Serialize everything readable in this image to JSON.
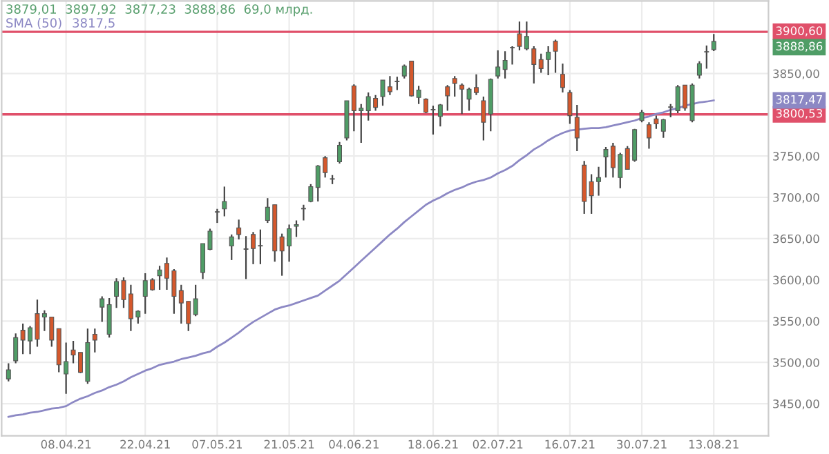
{
  "chart_data": {
    "type": "candlestick",
    "subtitle": "3879,01  3897,92  3877,23  3888,86  69,0 млрд.",
    "categories": [
      null,
      null,
      null,
      null,
      null,
      null,
      null,
      null,
      "08.04.21",
      null,
      null,
      null,
      null,
      null,
      null,
      null,
      null,
      null,
      null,
      "22.04.21",
      null,
      null,
      null,
      null,
      null,
      null,
      null,
      null,
      null,
      "07.05.21",
      null,
      null,
      null,
      null,
      null,
      null,
      null,
      null,
      null,
      "21.05.21",
      null,
      null,
      null,
      null,
      null,
      null,
      null,
      null,
      "04.06.21",
      null,
      null,
      null,
      null,
      null,
      null,
      null,
      null,
      null,
      null,
      "18.06.21",
      null,
      null,
      null,
      null,
      null,
      null,
      null,
      null,
      "02.07.21",
      null,
      null,
      null,
      null,
      null,
      null,
      null,
      null,
      null,
      "16.07.21",
      null,
      null,
      null,
      null,
      null,
      null,
      null,
      null,
      null,
      "30.07.21",
      null,
      null,
      null,
      null,
      null,
      null,
      null,
      null,
      null,
      "13.08.21"
    ],
    "ohlc": [
      [
        3480,
        3499,
        3477,
        3491
      ],
      [
        3502,
        3535,
        3499,
        3530
      ],
      [
        3539,
        3547,
        3510,
        3527
      ],
      [
        3526,
        3544,
        3510,
        3542
      ],
      [
        3559,
        3576,
        3519,
        3528
      ],
      [
        3555,
        3563,
        3538,
        3559
      ],
      [
        3555,
        3555,
        3519,
        3527
      ],
      [
        3541,
        3541,
        3488,
        3497
      ],
      [
        3486,
        3524,
        3462,
        3501
      ],
      [
        3515,
        3526,
        3499,
        3509
      ],
      [
        3512,
        3512,
        3487,
        3488
      ],
      [
        3477,
        3541,
        3474,
        3524
      ],
      [
        3534,
        3541,
        3512,
        3527
      ],
      [
        3567,
        3580,
        3549,
        3577
      ],
      [
        3534,
        3578,
        3530,
        3570
      ],
      [
        3580,
        3602,
        3566,
        3598
      ],
      [
        3599,
        3603,
        3566,
        3576
      ],
      [
        3583,
        3594,
        3538,
        3553
      ],
      [
        3555,
        3563,
        3547,
        3562
      ],
      [
        3580,
        3608,
        3559,
        3599
      ],
      [
        3600,
        3602,
        3587,
        3588
      ],
      [
        3605,
        3617,
        3588,
        3612
      ],
      [
        3620,
        3627,
        3588,
        3602
      ],
      [
        3611,
        3613,
        3559,
        3580
      ],
      [
        3587,
        3594,
        3547,
        3572
      ],
      [
        3574,
        3574,
        3538,
        3547
      ],
      [
        3558,
        3594,
        3556,
        3577
      ],
      [
        3609,
        3644,
        3601,
        3644
      ],
      [
        3637,
        3662,
        3636,
        3659
      ],
      [
        3682,
        3686,
        3669,
        3682
      ],
      [
        3686,
        3713,
        3677,
        3695
      ],
      [
        3641,
        3655,
        3624,
        3652
      ],
      [
        3663,
        3673,
        3649,
        3655
      ],
      [
        3637,
        3653,
        3601,
        3637
      ],
      [
        3655,
        3658,
        3619,
        3638
      ],
      [
        3641,
        3661,
        3619,
        3641
      ],
      [
        3672,
        3699,
        3669,
        3688
      ],
      [
        3691,
        3691,
        3622,
        3635
      ],
      [
        3652,
        3656,
        3605,
        3635
      ],
      [
        3641,
        3667,
        3622,
        3662
      ],
      [
        3665,
        3672,
        3652,
        3667
      ],
      [
        3686,
        3691,
        3672,
        3686
      ],
      [
        3695,
        3716,
        3694,
        3713
      ],
      [
        3712,
        3739,
        3695,
        3738
      ],
      [
        3748,
        3750,
        3724,
        3730
      ],
      [
        3722,
        3727,
        3716,
        3722
      ],
      [
        3743,
        3767,
        3741,
        3763
      ],
      [
        3772,
        3817,
        3769,
        3817
      ],
      [
        3835,
        3837,
        3780,
        3805
      ],
      [
        3805,
        3813,
        3766,
        3808
      ],
      [
        3805,
        3827,
        3793,
        3822
      ],
      [
        3820,
        3824,
        3805,
        3809
      ],
      [
        3822,
        3842,
        3811,
        3842
      ],
      [
        3834,
        3847,
        3824,
        3828
      ],
      [
        3840,
        3846,
        3830,
        3840
      ],
      [
        3847,
        3861,
        3844,
        3859
      ],
      [
        3865,
        3865,
        3822,
        3823
      ],
      [
        3821,
        3835,
        3813,
        3830
      ],
      [
        3819,
        3820,
        3802,
        3803
      ],
      [
        3806,
        3811,
        3776,
        3806
      ],
      [
        3798,
        3813,
        3786,
        3812
      ],
      [
        3834,
        3836,
        3805,
        3823
      ],
      [
        3844,
        3847,
        3822,
        3838
      ],
      [
        3836,
        3838,
        3801,
        3831
      ],
      [
        3819,
        3833,
        3805,
        3831
      ],
      [
        3833,
        3849,
        3824,
        3827
      ],
      [
        3817,
        3822,
        3769,
        3791
      ],
      [
        3801,
        3844,
        3780,
        3843
      ],
      [
        3847,
        3878,
        3844,
        3858
      ],
      [
        3855,
        3877,
        3844,
        3866
      ],
      [
        3881,
        3883,
        3861,
        3881
      ],
      [
        3898,
        3913,
        3878,
        3883
      ],
      [
        3880,
        3913,
        3878,
        3895
      ],
      [
        3880,
        3883,
        3838,
        3861
      ],
      [
        3867,
        3874,
        3851,
        3856
      ],
      [
        3867,
        3883,
        3848,
        3876
      ],
      [
        3889,
        3891,
        3851,
        3877
      ],
      [
        3849,
        3862,
        3827,
        3833
      ],
      [
        3827,
        3830,
        3789,
        3799
      ],
      [
        3797,
        3812,
        3756,
        3772
      ],
      [
        3739,
        3744,
        3680,
        3695
      ],
      [
        3719,
        3728,
        3680,
        3702
      ],
      [
        3719,
        3737,
        3702,
        3724
      ],
      [
        3749,
        3761,
        3724,
        3758
      ],
      [
        3762,
        3766,
        3724,
        3736
      ],
      [
        3724,
        3754,
        3711,
        3752
      ],
      [
        3759,
        3762,
        3734,
        3734
      ],
      [
        3745,
        3783,
        3743,
        3782
      ],
      [
        3793,
        3806,
        3791,
        3803
      ],
      [
        3788,
        3791,
        3759,
        3772
      ],
      [
        3795,
        3799,
        3783,
        3789
      ],
      [
        3780,
        3795,
        3772,
        3794
      ],
      [
        3809,
        3813,
        3797,
        3809
      ],
      [
        3805,
        3836,
        3802,
        3834
      ],
      [
        3836,
        3836,
        3805,
        3808
      ],
      [
        3793,
        3838,
        3791,
        3836
      ],
      [
        3848,
        3865,
        3844,
        3862
      ],
      [
        3876,
        3884,
        3856,
        3876
      ],
      [
        3879.01,
        3897.92,
        3877.23,
        3888.86
      ]
    ],
    "colors": [
      "#4f9d66",
      "#4f9d66",
      "#d5582c",
      "#4f9d66",
      "#d5582c",
      "#4f9d66",
      "#d5582c",
      "#d5582c",
      "#4f9d66",
      "#d5582c",
      "#d5582c",
      "#4f9d66",
      "#d5582c",
      "#4f9d66",
      "#4f9d66",
      "#4f9d66",
      "#d5582c",
      "#d5582c",
      "#4f9d66",
      "#4f9d66",
      "#d5582c",
      "#4f9d66",
      "#d5582c",
      "#d5582c",
      "#d5582c",
      "#d5582c",
      "#4f9d66",
      "#4f9d66",
      "#4f9d66",
      "#3a3a3a",
      "#4f9d66",
      "#4f9d66",
      "#d5582c",
      "#3a3a3a",
      "#d5582c",
      "#3a3a3a",
      "#4f9d66",
      "#d5582c",
      "#d5582c",
      "#4f9d66",
      "#4f9d66",
      "#3a3a3a",
      "#4f9d66",
      "#4f9d66",
      "#d5582c",
      "#3a3a3a",
      "#4f9d66",
      "#4f9d66",
      "#d5582c",
      "#4f9d66",
      "#4f9d66",
      "#d5582c",
      "#4f9d66",
      "#d5582c",
      "#3a3a3a",
      "#4f9d66",
      "#d5582c",
      "#4f9d66",
      "#d5582c",
      "#3a3a3a",
      "#4f9d66",
      "#d5582c",
      "#d5582c",
      "#d5582c",
      "#4f9d66",
      "#d5582c",
      "#d5582c",
      "#4f9d66",
      "#4f9d66",
      "#4f9d66",
      "#3a3a3a",
      "#d5582c",
      "#4f9d66",
      "#d5582c",
      "#d5582c",
      "#4f9d66",
      "#d5582c",
      "#d5582c",
      "#d5582c",
      "#d5582c",
      "#d5582c",
      "#d5582c",
      "#4f9d66",
      "#4f9d66",
      "#d5582c",
      "#4f9d66",
      "#d5582c",
      "#4f9d66",
      "#4f9d66",
      "#d5582c",
      "#d5582c",
      "#4f9d66",
      "#3a3a3a",
      "#4f9d66",
      "#d5582c",
      "#4f9d66",
      "#4f9d66",
      "#3a3a3a",
      "#4f9d66"
    ],
    "series": [
      {
        "name": "SMA (50)",
        "type": "line",
        "color": "#8c88c4",
        "values": [
          3434,
          3436,
          3437,
          3439,
          3440,
          3442,
          3444,
          3445,
          3447,
          3452,
          3456,
          3459,
          3463,
          3466,
          3470,
          3473,
          3477,
          3482,
          3486,
          3490,
          3493,
          3497,
          3499,
          3501,
          3504,
          3506,
          3508,
          3511,
          3513,
          3519,
          3524,
          3530,
          3536,
          3543,
          3549,
          3554,
          3559,
          3564,
          3567,
          3569,
          3572,
          3575,
          3578,
          3581,
          3587,
          3593,
          3599,
          3607,
          3615,
          3623,
          3631,
          3639,
          3647,
          3655,
          3662,
          3670,
          3677,
          3684,
          3691,
          3696,
          3700,
          3705,
          3709,
          3712,
          3716,
          3719,
          3721,
          3724,
          3729,
          3733,
          3738,
          3745,
          3751,
          3758,
          3763,
          3769,
          3774,
          3778,
          3781,
          3782,
          3783,
          3784,
          3784,
          3785,
          3787,
          3789,
          3791,
          3793,
          3796,
          3798,
          3801,
          3803,
          3806,
          3808,
          3811,
          3813,
          3815,
          3816,
          3817.47
        ]
      }
    ],
    "annotations": [
      "3888,86",
      "3817,47",
      "3817,5"
    ],
    "ref_lines": [
      {
        "axis": "y",
        "value": 3900.6,
        "label": "3900,60",
        "color": "#e0506a"
      },
      {
        "axis": "y",
        "value": 3800.53,
        "label": "3800,53",
        "color": "#e0506a"
      }
    ],
    "ylim": [
      3411,
      3938
    ],
    "yticks": [
      {
        "value": 3450,
        "label": "3450,00"
      },
      {
        "value": 3500,
        "label": "3500,00"
      },
      {
        "value": 3550,
        "label": "3550,00"
      },
      {
        "value": 3600,
        "label": "3600,00"
      },
      {
        "value": 3650,
        "label": "3650,00"
      },
      {
        "value": 3700,
        "label": "3700,00"
      },
      {
        "value": 3750,
        "label": "3750,00"
      },
      {
        "value": 3850,
        "label": "3850,00"
      }
    ],
    "grid": true,
    "marker": "none",
    "line_style": "solid"
  }
}
